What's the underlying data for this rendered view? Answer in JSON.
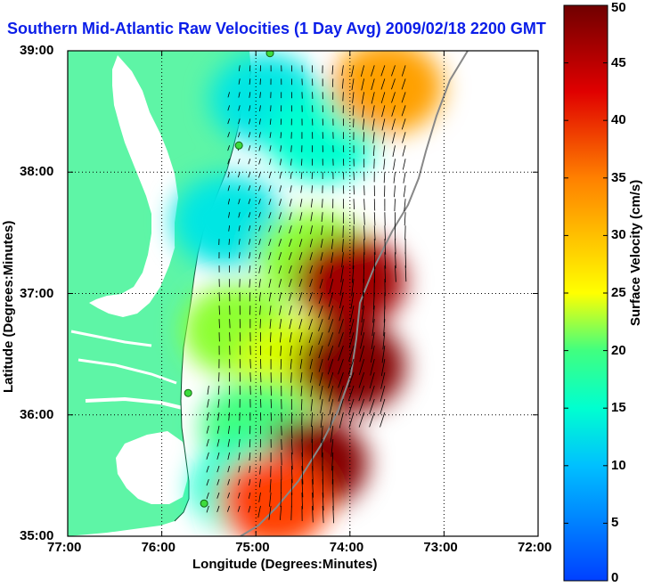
{
  "chart_data": {
    "type": "heatmap",
    "title": "Southern Mid-Atlantic Raw Velocities (1 Day Avg) 2009/02/18 2200 GMT",
    "xlabel": "Longitude (Degrees:Minutes)",
    "ylabel": "Latitude (Degrees:Minutes)",
    "x_ticks": [
      "77:00",
      "76:00",
      "75:00",
      "74:00",
      "73:00",
      "72:00"
    ],
    "y_ticks": [
      "39:00",
      "38:00",
      "37:00",
      "36:00",
      "35:00"
    ],
    "xlim": [
      -77,
      -72
    ],
    "ylim": [
      35,
      39
    ],
    "grid": true,
    "colorbar": {
      "label": "Surface Velocity (cm/s)",
      "range": [
        0,
        50
      ],
      "ticks": [
        0,
        5,
        10,
        15,
        20,
        25,
        30,
        35,
        40,
        45,
        50
      ],
      "colors": [
        "#0040ff",
        "#00c0ff",
        "#00ffd0",
        "#40ff80",
        "#c0ff00",
        "#ffff00",
        "#ffa000",
        "#ff4000",
        "#e00000",
        "#a00000",
        "#700000"
      ]
    },
    "region_speeds": [
      {
        "lon": -74.9,
        "lat": 38.6,
        "speed": 8
      },
      {
        "lon": -74.3,
        "lat": 38.3,
        "speed": 10
      },
      {
        "lon": -73.6,
        "lat": 38.7,
        "speed": 30
      },
      {
        "lon": -75.3,
        "lat": 37.6,
        "speed": 8
      },
      {
        "lon": -74.4,
        "lat": 37.3,
        "speed": 18
      },
      {
        "lon": -74.0,
        "lat": 37.1,
        "speed": 45
      },
      {
        "lon": -75.2,
        "lat": 36.7,
        "speed": 18
      },
      {
        "lon": -74.6,
        "lat": 36.4,
        "speed": 22
      },
      {
        "lon": -74.0,
        "lat": 36.4,
        "speed": 48
      },
      {
        "lon": -75.0,
        "lat": 35.9,
        "speed": 15
      },
      {
        "lon": -74.4,
        "lat": 35.6,
        "speed": 48
      },
      {
        "lon": -75.1,
        "lat": 35.4,
        "speed": 10
      },
      {
        "lon": -74.8,
        "lat": 35.3,
        "speed": 35
      }
    ],
    "sites": [
      {
        "lon": -74.85,
        "lat": 38.98
      },
      {
        "lon": -75.18,
        "lat": 38.22
      },
      {
        "lon": -75.72,
        "lat": 36.18
      },
      {
        "lon": -75.55,
        "lat": 35.27
      }
    ]
  },
  "colors": {
    "land": "#5ef5a6",
    "title": "#0b1ee8",
    "frame": "#000000"
  }
}
